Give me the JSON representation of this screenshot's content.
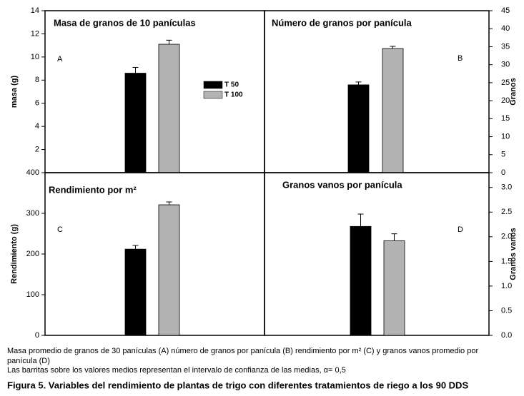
{
  "chart_data": [
    {
      "type": "bar",
      "title": "Masa de granos de 10 panículas",
      "panel": "A",
      "ylabel": "masa (g)",
      "values": [
        8.6,
        11.1
      ],
      "errors": [
        0.5,
        0.35
      ],
      "colors": [
        "#000000",
        "#b3b3b3"
      ],
      "ylim": [
        0,
        14
      ],
      "yticks": [
        2,
        4,
        6,
        8,
        10,
        12,
        14
      ],
      "axis_side": "left",
      "legend": [
        {
          "name": "T 50",
          "color": "#000000"
        },
        {
          "name": "T 100",
          "color": "#b3b3b3"
        }
      ]
    },
    {
      "type": "bar",
      "title": "Número de granos por panícula",
      "panel": "B",
      "ylabel": "Granos",
      "values": [
        24.4,
        34.5
      ],
      "errors": [
        0.8,
        0.6
      ],
      "colors": [
        "#000000",
        "#b3b3b3"
      ],
      "ylim": [
        0,
        45
      ],
      "yticks": [
        0,
        5,
        10,
        15,
        20,
        25,
        30,
        35,
        40,
        45
      ],
      "axis_side": "right"
    },
    {
      "type": "bar",
      "title": "Rendimiento por m²",
      "panel": "C",
      "ylabel": "Rendimiento (g)",
      "values": [
        212,
        321
      ],
      "errors": [
        9,
        7
      ],
      "colors": [
        "#000000",
        "#b3b3b3"
      ],
      "ylim": [
        0,
        400
      ],
      "yticks": [
        0,
        100,
        200,
        300,
        400
      ],
      "axis_side": "left"
    },
    {
      "type": "bar",
      "title": "Granos vanos por panícula",
      "panel": "D",
      "ylabel": "Granos vanos",
      "values": [
        2.21,
        1.92
      ],
      "errors": [
        0.25,
        0.14
      ],
      "colors": [
        "#000000",
        "#b3b3b3"
      ],
      "ylim": [
        0,
        3.3
      ],
      "yticks": [
        {
          "value": 0,
          "label": "0.0"
        },
        {
          "value": 0.5,
          "label": "0.5"
        },
        {
          "value": 1,
          "label": "1.0"
        },
        {
          "value": 1.5,
          "label": "1.5"
        },
        {
          "value": 2,
          "label": "2.0"
        },
        {
          "value": 2.5,
          "label": "2.5"
        },
        {
          "value": 3,
          "label": "3.0"
        }
      ],
      "axis_side": "right"
    }
  ],
  "caption": {
    "lines": [
      "Masa promedio de granos de 30 panículas (A) número de granos por panícula (B) rendimiento por m² (C) y granos vanos promedio por",
      "panícula (D)",
      "Las barritas sobre los valores medios representan el intervalo de confianza de las medias, α= 0,5"
    ],
    "figure": "Figura 5. Variables del rendimiento de plantas de trigo con diferentes tratamientos de riego a los 90 DDS"
  }
}
